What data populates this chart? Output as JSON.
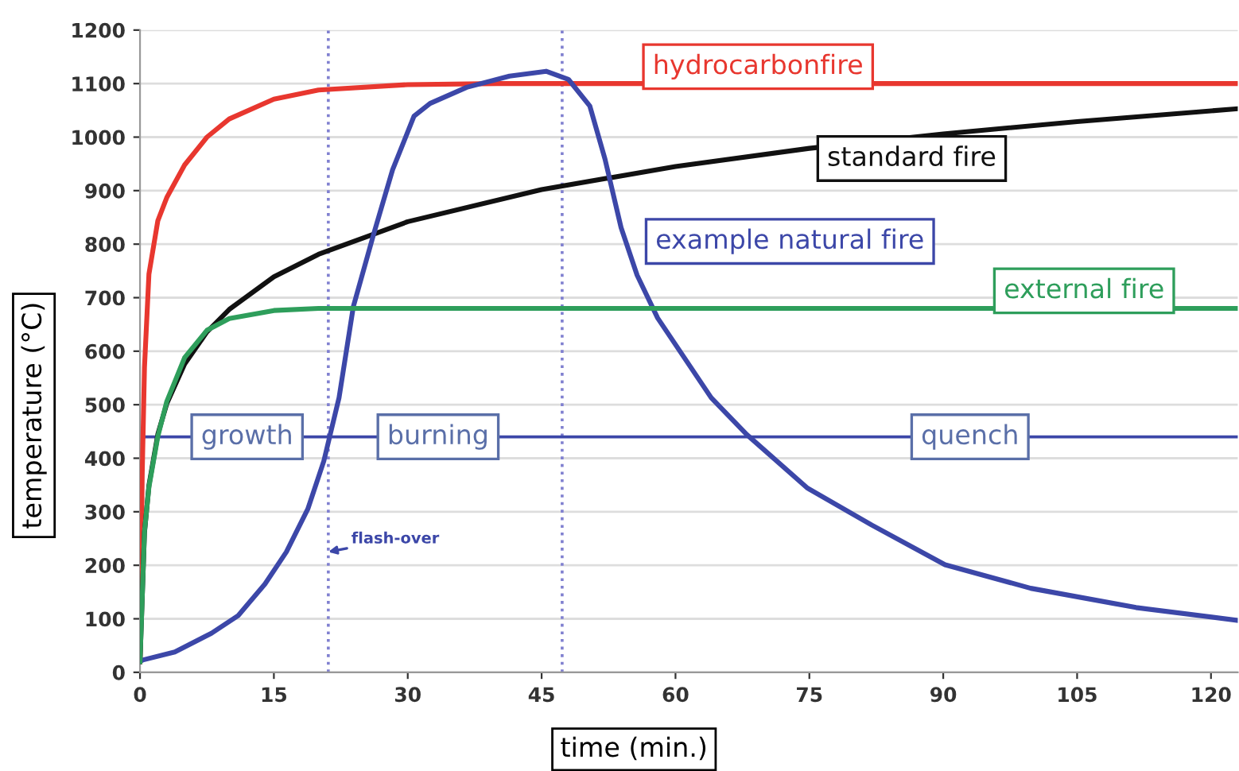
{
  "chart_data": {
    "type": "line",
    "xlabel": "time (min.)",
    "ylabel": "temperature (°C)",
    "xlim": [
      0,
      123
    ],
    "xticks": [
      0,
      15,
      30,
      45,
      60,
      75,
      90,
      105,
      120
    ],
    "ylim": [
      0,
      1200
    ],
    "yticks": [
      0,
      100,
      200,
      300,
      400,
      500,
      600,
      700,
      800,
      900,
      1000,
      1100,
      1200
    ],
    "grid": "y",
    "legend": false,
    "marker": "none",
    "line_style": "solid",
    "series": [
      {
        "name": "hydrocarbonfire",
        "color": "#e8372f",
        "x": [
          0,
          0.25,
          0.5,
          1,
          2,
          3,
          5,
          7.5,
          10,
          15,
          20,
          30,
          40,
          123
        ],
        "values": [
          20,
          373,
          569,
          744,
          844,
          887,
          948,
          1000,
          1034,
          1071,
          1088,
          1098,
          1100,
          1100
        ]
      },
      {
        "name": "standard fire",
        "color": "#111111",
        "x": [
          0,
          0.5,
          1,
          2,
          3,
          5,
          7.5,
          10,
          15,
          20,
          30,
          45,
          60,
          75,
          90,
          105,
          123
        ],
        "values": [
          20,
          261,
          349,
          445,
          502,
          576,
          636,
          678,
          739,
          781,
          842,
          902,
          945,
          979,
          1006,
          1029,
          1053
        ]
      },
      {
        "name": "example natural fire",
        "color": "#3c47a8",
        "x": [
          0,
          0.3,
          3.9,
          8,
          11,
          14,
          16.4,
          18.8,
          20.6,
          22.3,
          23.9,
          26.2,
          28.3,
          30.7,
          32.5,
          36.6,
          41.4,
          45.5,
          48,
          50.4,
          52.1,
          53.9,
          55.7,
          58,
          64,
          68,
          74.8,
          82,
          90.2,
          99.8,
          111.6,
          123
        ],
        "values": [
          20,
          23,
          38,
          73,
          106,
          165,
          225,
          305,
          395,
          513,
          683,
          820,
          939,
          1039,
          1063,
          1093,
          1114,
          1123,
          1108,
          1058,
          959,
          831,
          742,
          662,
          513,
          444,
          344,
          275,
          201,
          157,
          121,
          97
        ]
      },
      {
        "name": "external fire",
        "color": "#2e9e5b",
        "x": [
          0,
          0.5,
          1,
          2,
          3,
          5,
          7.5,
          10,
          15,
          20,
          123
        ],
        "values": [
          20,
          263,
          346,
          441,
          506,
          588,
          639,
          661,
          676,
          680,
          680
        ]
      }
    ],
    "ref_lines": [
      {
        "axis": "x",
        "value": 21.1,
        "color": "#8080d0",
        "line_style": "dotted"
      },
      {
        "axis": "x",
        "value": 47.3,
        "color": "#8080d0",
        "line_style": "dotted"
      },
      {
        "axis": "y",
        "value": 440,
        "color": "#3c47a8",
        "line_style": "solid"
      }
    ],
    "annotations": [
      {
        "text": "growth",
        "x": 12,
        "y": 440
      },
      {
        "text": "burning",
        "x": 33.4,
        "y": 440
      },
      {
        "text": "quench",
        "x": 93,
        "y": 440
      },
      {
        "text": "flash-over",
        "x": 21.1,
        "y": 225
      }
    ]
  }
}
